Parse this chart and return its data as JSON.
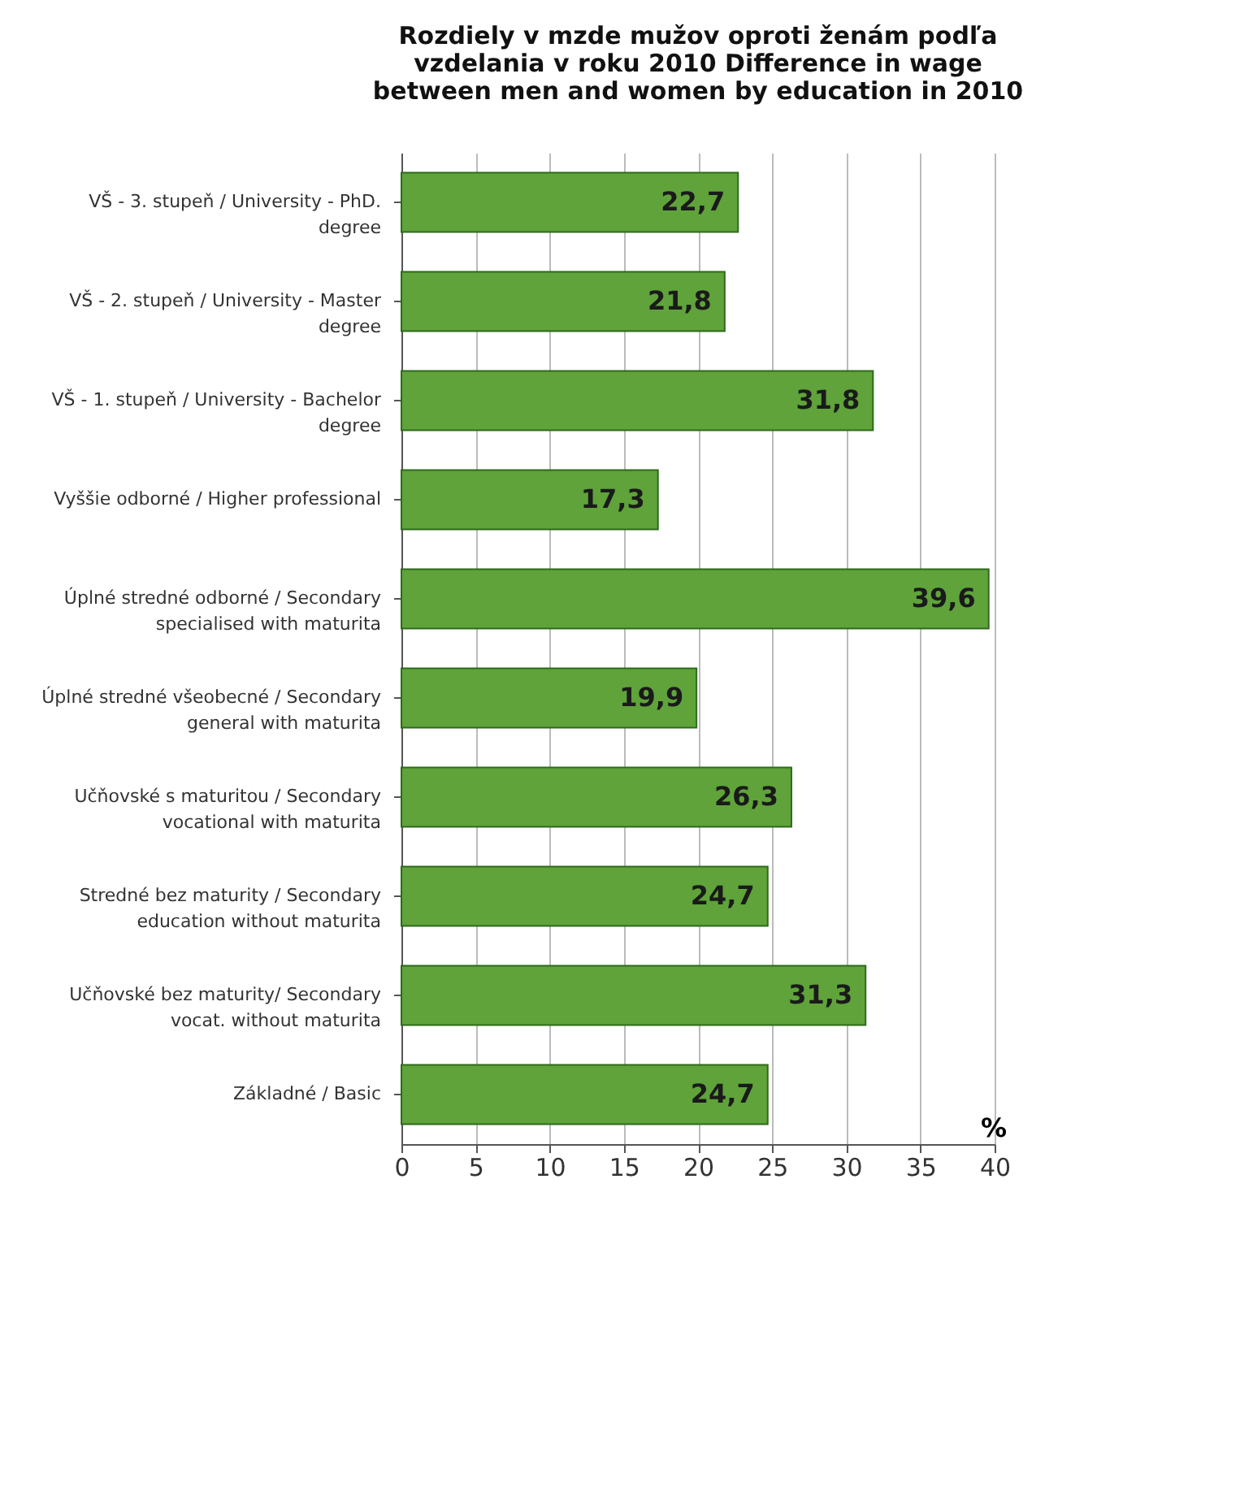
{
  "chart_data": {
    "type": "bar",
    "orientation": "horizontal",
    "title": "Rozdiely v mzde mužov oproti ženám podľa vzdelania v roku 2010 Difference in wage between men and women by education in 2010",
    "xlabel": "%",
    "categories": [
      "VŠ - 3. stupeň / University - PhD. degree",
      "VŠ - 2. stupeň / University - Master degree",
      "VŠ - 1. stupeň / University - Bachelor degree",
      "Vyššie odborné / Higher professional",
      "Úplné stredné odborné / Secondary specialised with maturita",
      "Úplné stredné všeobecné / Secondary general with maturita",
      "Učňovské s maturitou / Secondary vocational with maturita",
      "Stredné bez maturity / Secondary education without maturita",
      "Učňovské bez maturity/ Secondary vocat. without maturita",
      "Základné / Basic"
    ],
    "values": [
      22.7,
      21.8,
      31.8,
      17.3,
      39.6,
      19.9,
      26.3,
      24.7,
      31.3,
      24.7
    ],
    "value_labels": [
      "22,7",
      "21,8",
      "31,8",
      "17,3",
      "39,6",
      "19,9",
      "26,3",
      "24,7",
      "31,3",
      "24,7"
    ],
    "color": "#5fa33a",
    "xlim": [
      0,
      40
    ],
    "xticks": [
      0,
      5,
      10,
      15,
      20,
      25,
      30,
      35,
      40
    ],
    "grid": "x"
  }
}
